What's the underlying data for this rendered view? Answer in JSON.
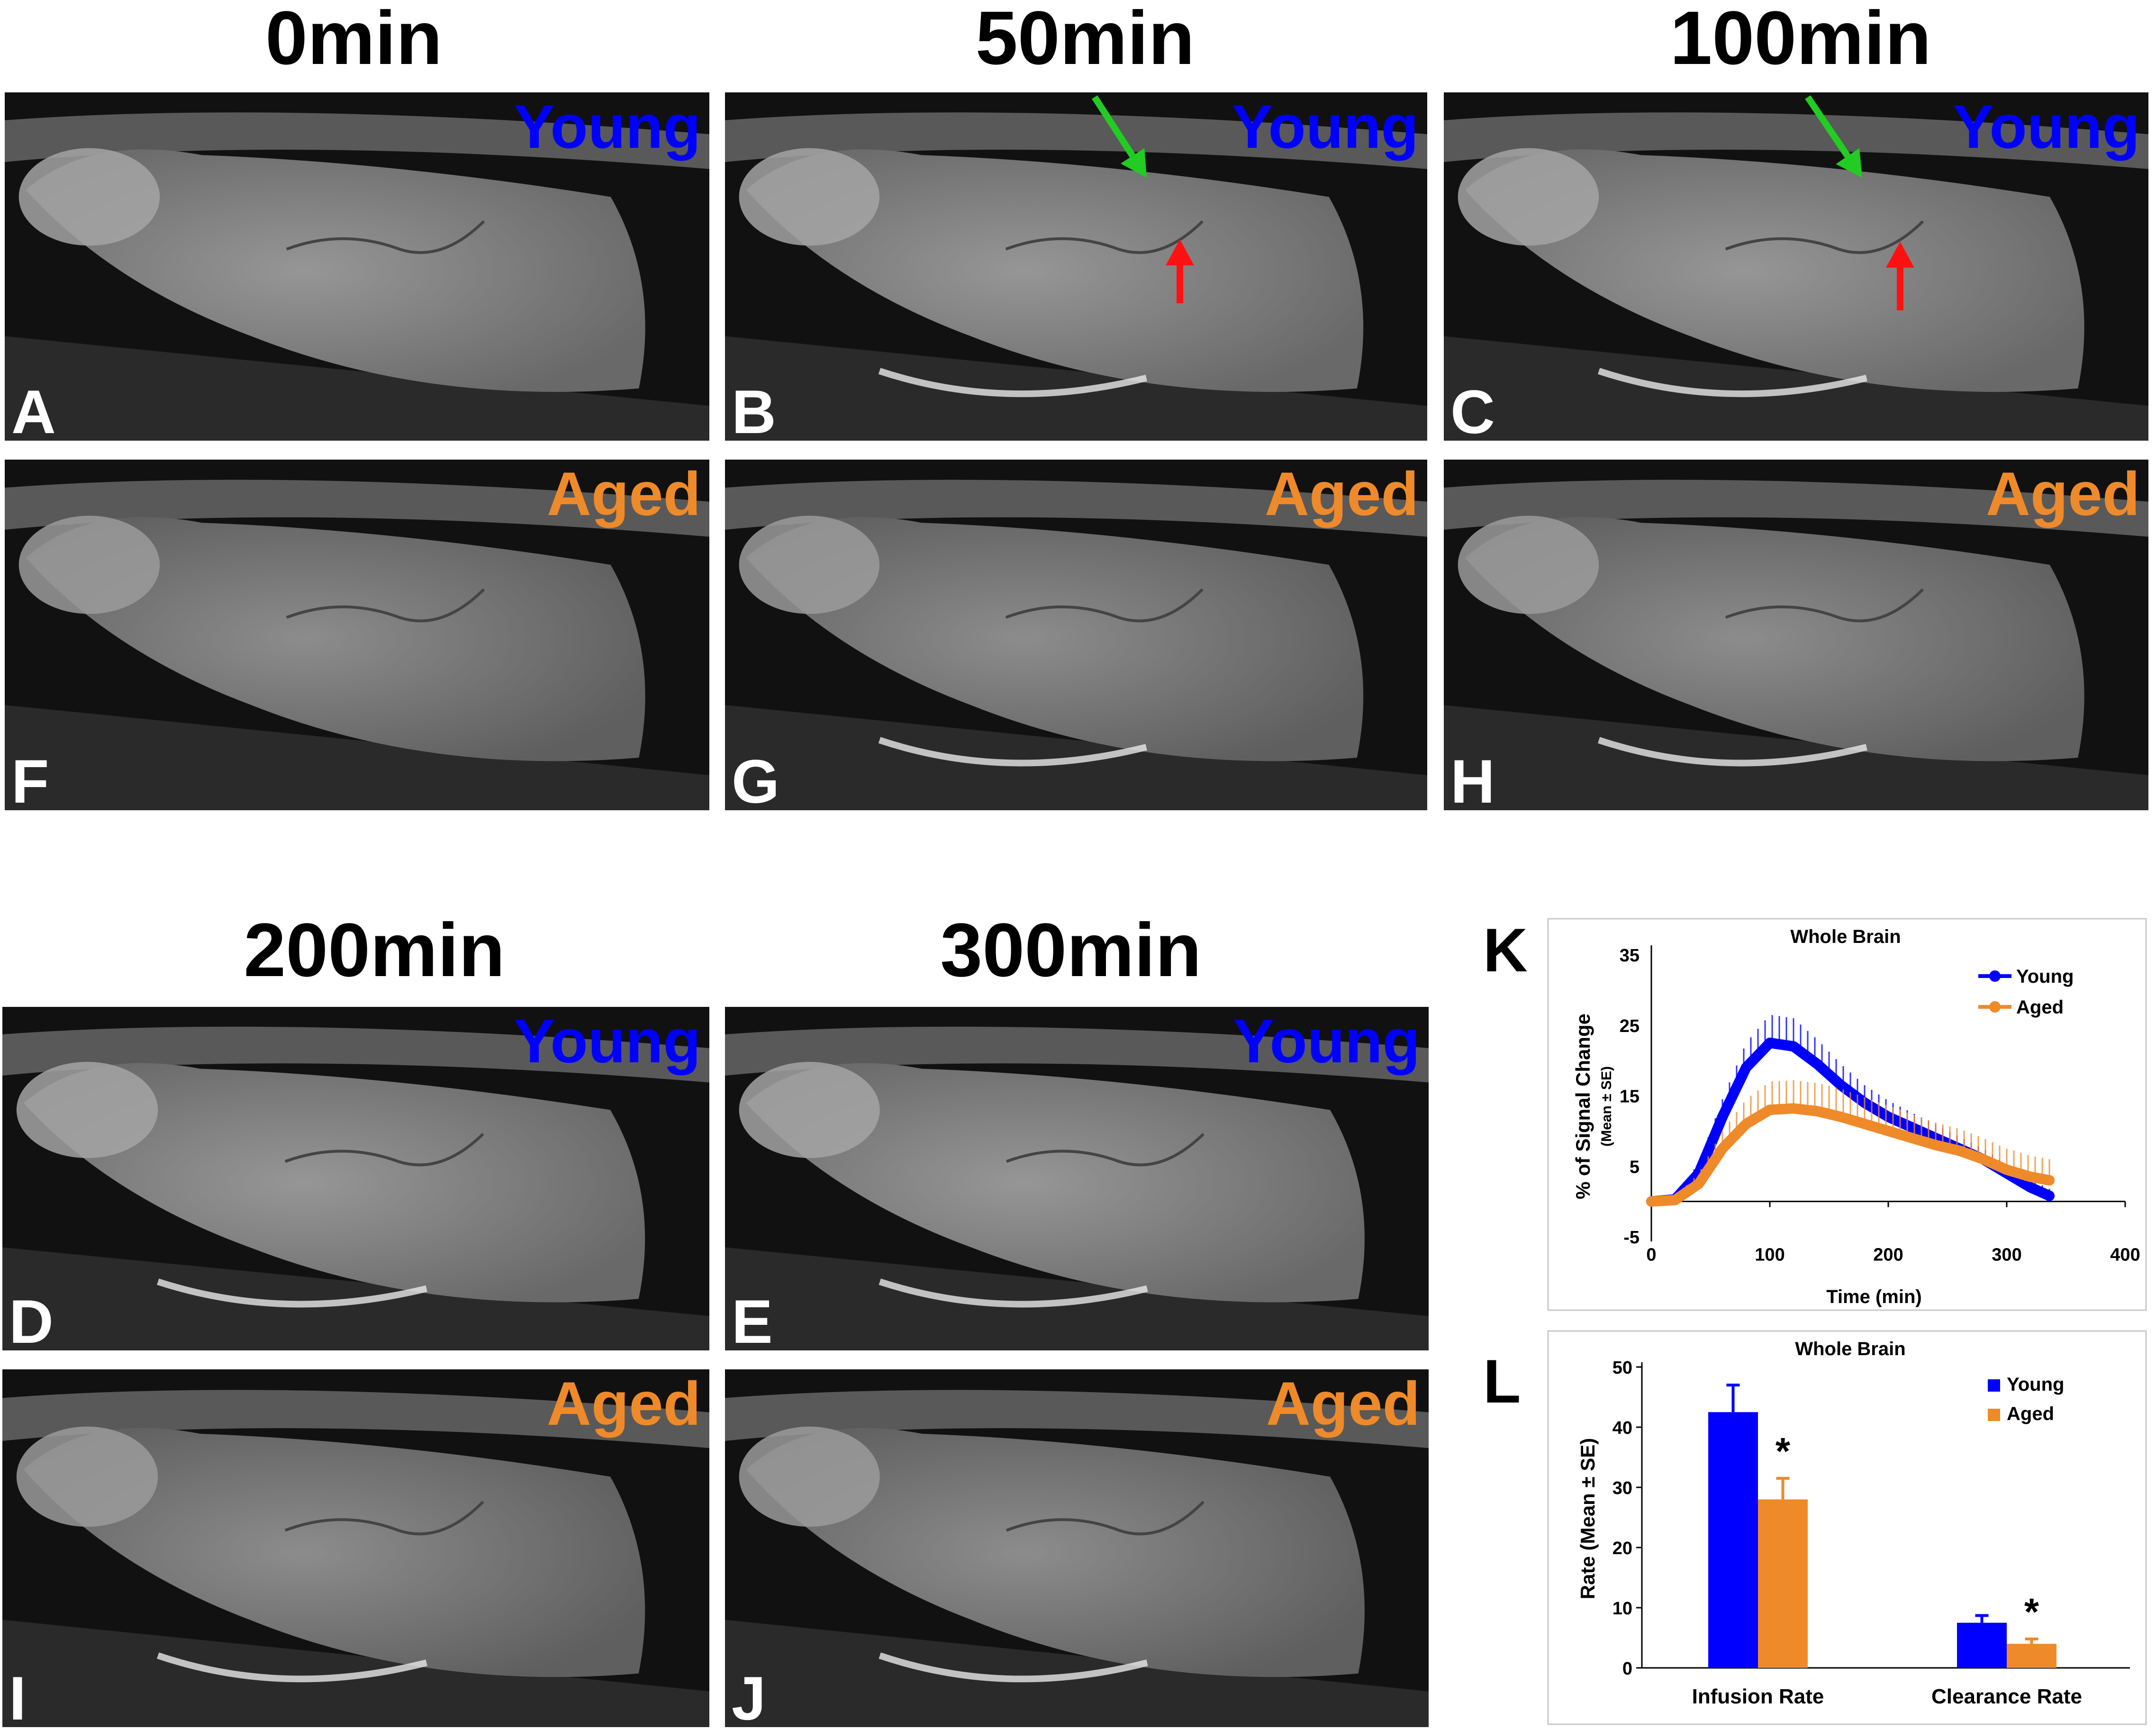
{
  "colors": {
    "young": "#0000ff",
    "aged": "#ee8a2a",
    "green_arrow": "#22cc22",
    "red_arrow": "#ff1111"
  },
  "time_titles": [
    "0min",
    "50min",
    "100min",
    "200min",
    "300min"
  ],
  "panels": [
    {
      "letter": "A",
      "group": "Young",
      "green_arrow": false,
      "red_arrow": false
    },
    {
      "letter": "B",
      "group": "Young",
      "green_arrow": true,
      "red_arrow": true
    },
    {
      "letter": "C",
      "group": "Young",
      "green_arrow": true,
      "red_arrow": true
    },
    {
      "letter": "F",
      "group": "Aged",
      "green_arrow": false,
      "red_arrow": false
    },
    {
      "letter": "G",
      "group": "Aged",
      "green_arrow": true,
      "red_arrow": true
    },
    {
      "letter": "H",
      "group": "Aged",
      "green_arrow": true,
      "red_arrow": true
    },
    {
      "letter": "D",
      "group": "Young",
      "green_arrow": true,
      "red_arrow": false
    },
    {
      "letter": "E",
      "group": "Young",
      "green_arrow": true,
      "red_arrow": true
    },
    {
      "letter": "I",
      "group": "Aged",
      "green_arrow": true,
      "red_arrow": false
    },
    {
      "letter": "J",
      "group": "Aged",
      "green_arrow": true,
      "red_arrow": true
    }
  ],
  "chart_data": [
    {
      "panel": "K",
      "type": "line",
      "title": "Whole Brain",
      "xlabel": "Time (min)",
      "ylabel": "% of Signal Change",
      "ylabel_sub": "(Mean ± SE)",
      "xlim": [
        0,
        400
      ],
      "ylim": [
        -5,
        35
      ],
      "xticks": [
        "0",
        "100",
        "200",
        "300",
        "400"
      ],
      "yticks": [
        "-5",
        "5",
        "15",
        "25",
        "35"
      ],
      "legend_position": "top-right",
      "x": [
        0,
        20,
        40,
        60,
        80,
        100,
        120,
        140,
        160,
        180,
        200,
        220,
        240,
        260,
        280,
        300,
        320,
        336
      ],
      "series": [
        {
          "name": "Young",
          "values": [
            0,
            0.3,
            4,
            12,
            19,
            22.5,
            22,
            19.5,
            16.5,
            14,
            12,
            10.5,
            9,
            7.5,
            6,
            4,
            2,
            0.8
          ],
          "error": [
            0,
            0.5,
            1.5,
            2.5,
            3.5,
            4,
            4,
            3.5,
            3,
            2.5,
            2.3,
            2.1,
            1.9,
            1.7,
            1.5,
            1.3,
            1.1,
            1
          ]
        },
        {
          "name": "Aged",
          "values": [
            0,
            0.2,
            2.5,
            7.5,
            11,
            13,
            13.2,
            12.8,
            12,
            11,
            10,
            9,
            8,
            7.2,
            6,
            4.5,
            3.5,
            3
          ],
          "error": [
            0,
            0.5,
            1.5,
            2.5,
            3.5,
            4,
            4,
            4,
            4,
            3.8,
            3.6,
            3.4,
            3.2,
            3.1,
            3,
            3,
            3,
            3
          ]
        }
      ]
    },
    {
      "panel": "L",
      "type": "bar",
      "title": "Whole Brain",
      "xlabel": "",
      "ylabel": "Rate (Mean ± SE)",
      "ylim": [
        0,
        50
      ],
      "yticks": [
        "0",
        "10",
        "20",
        "30",
        "40",
        "50"
      ],
      "categories": [
        "Infusion Rate",
        "Clearance Rate"
      ],
      "legend_position": "top-right",
      "series": [
        {
          "name": "Young",
          "values": [
            42.5,
            7.5
          ],
          "error": [
            4.5,
            1.2
          ]
        },
        {
          "name": "Aged",
          "values": [
            28,
            4
          ],
          "error": [
            3.5,
            0.8
          ]
        }
      ],
      "annotations": [
        "*",
        "*"
      ]
    }
  ]
}
